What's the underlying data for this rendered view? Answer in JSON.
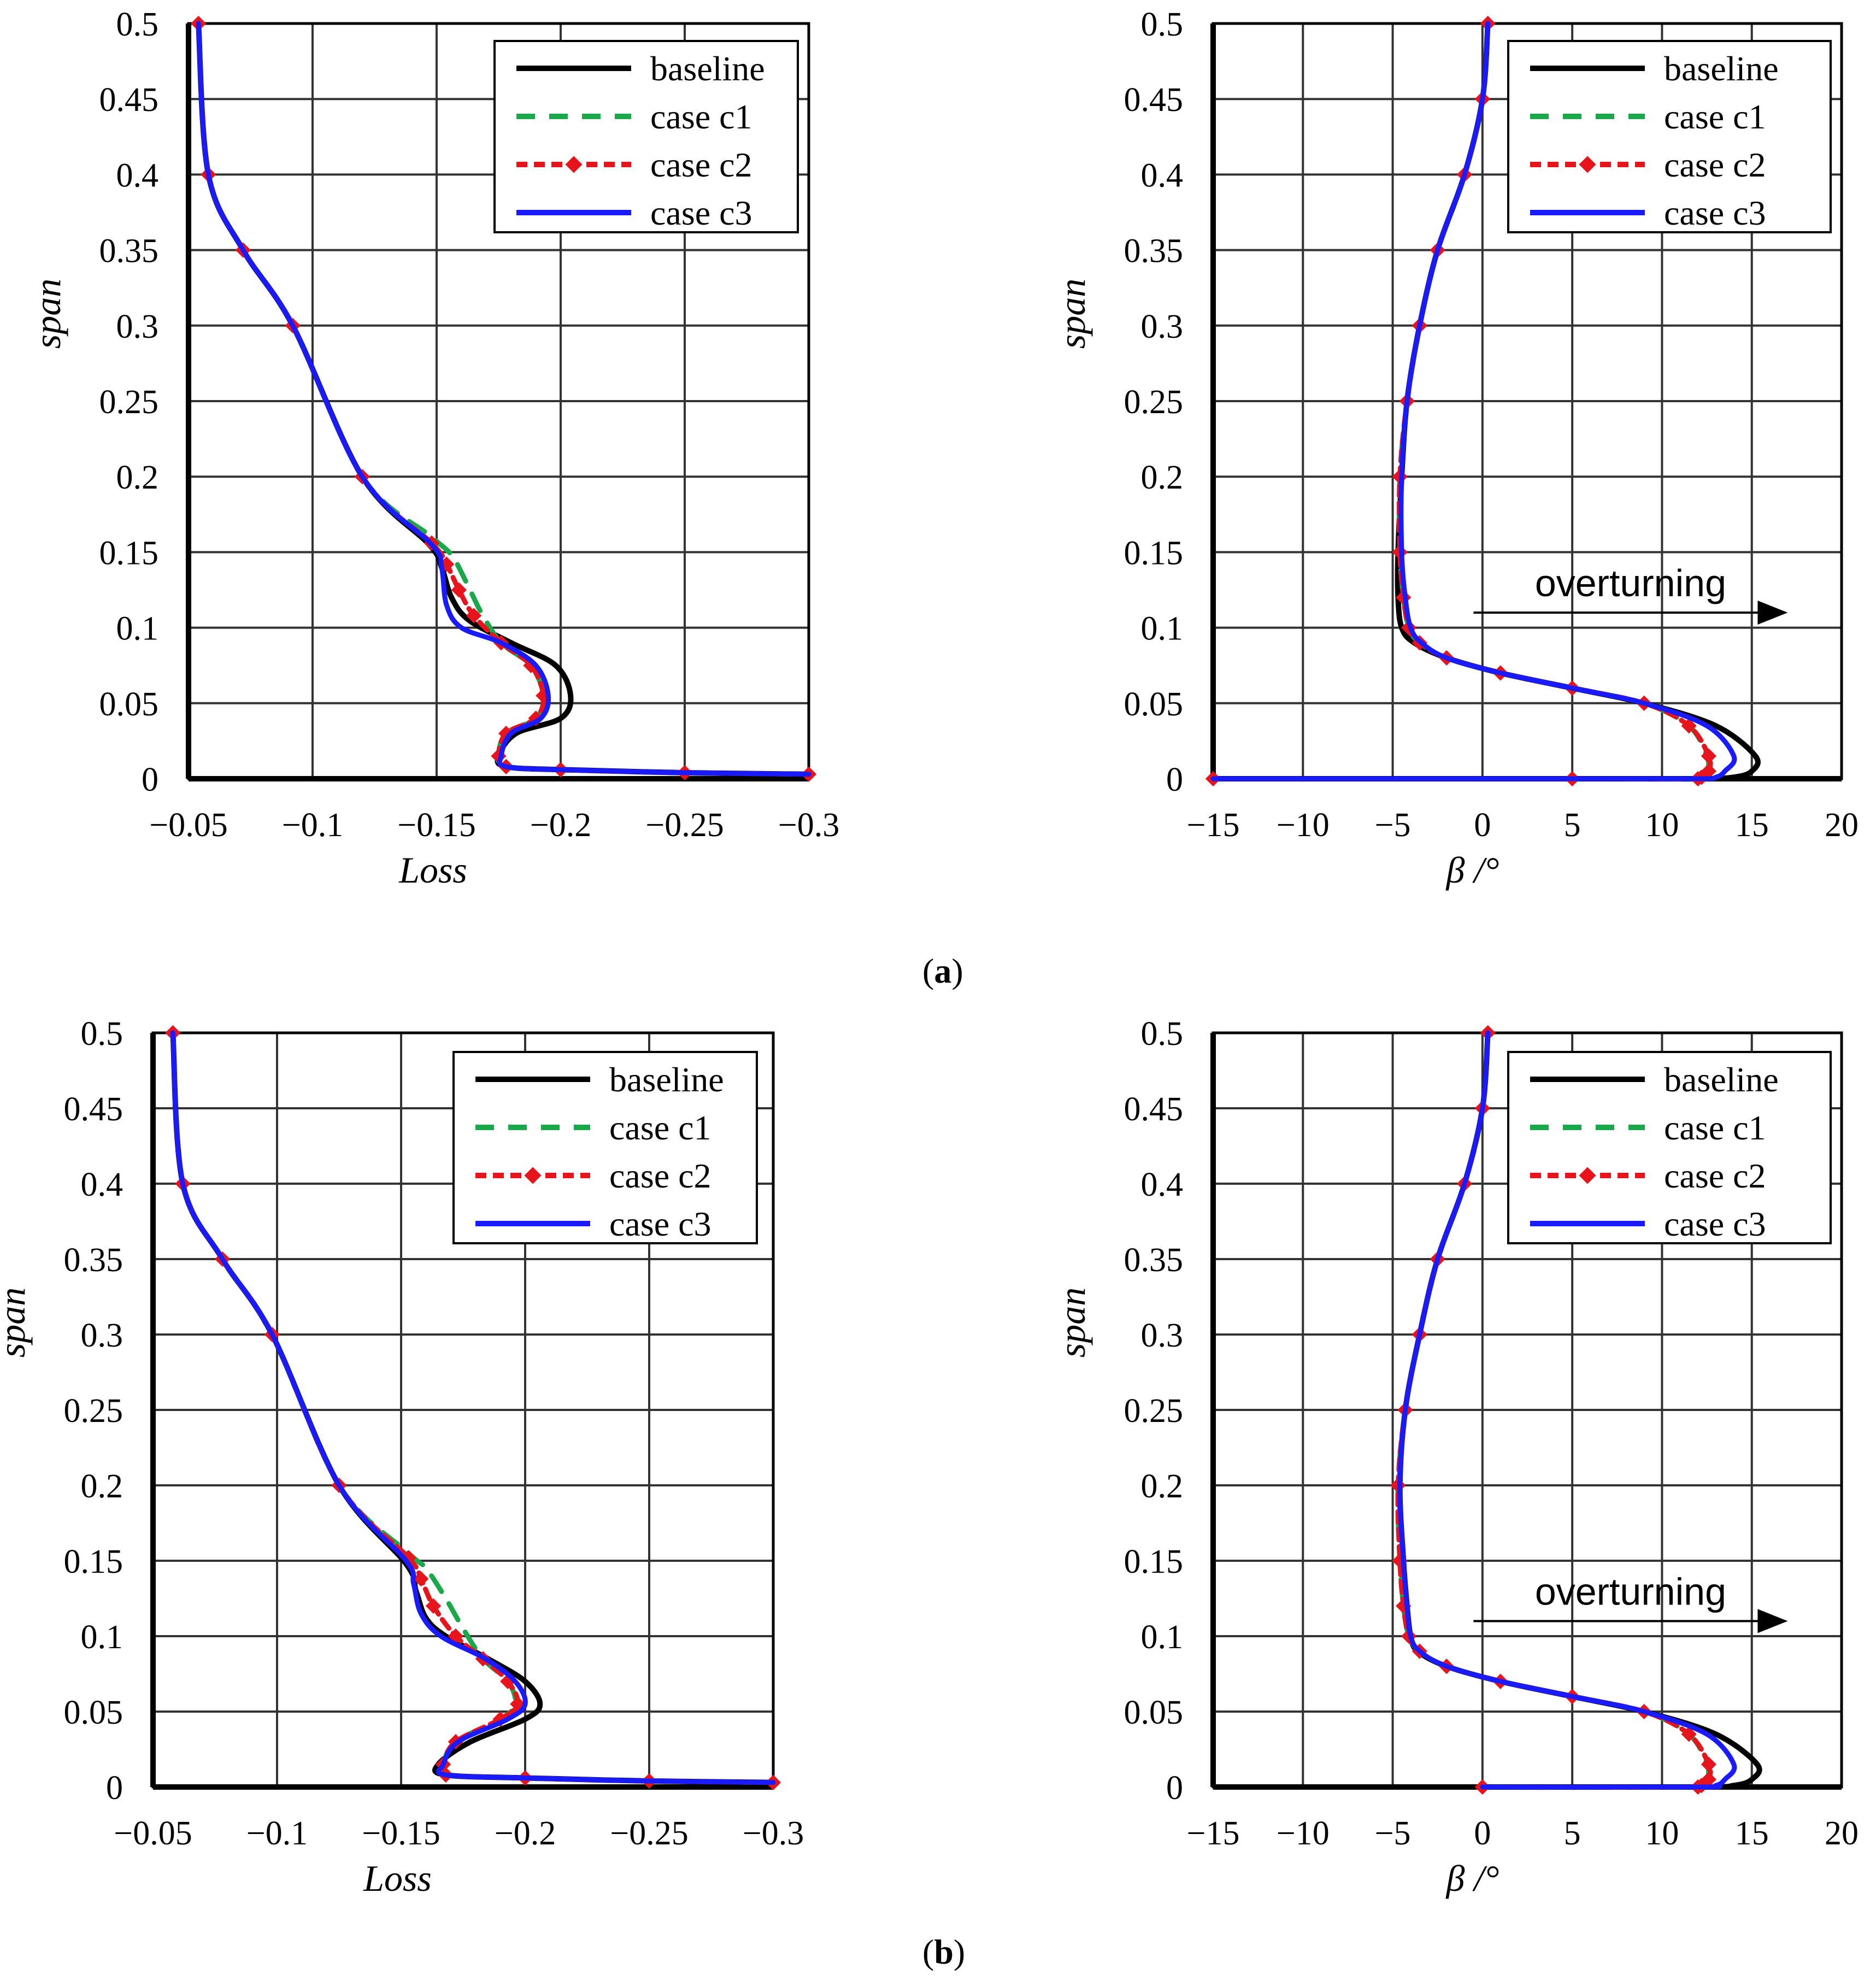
{
  "colors": {
    "baseline": "#000000",
    "case_c1": "#1aa84a",
    "case_c2": "#e8141c",
    "case_c3": "#1a1aff",
    "grid": "#333333"
  },
  "panel_labels": {
    "a": "a",
    "b": "b"
  },
  "chart_data": [
    {
      "id": "a-loss",
      "type": "line",
      "panel": "a",
      "xlabel": "Loss",
      "ylabel": "span",
      "xlim": [
        -0.05,
        -0.3
      ],
      "ylim": [
        0,
        0.5
      ],
      "xticks": [
        -0.05,
        -0.1,
        -0.15,
        -0.2,
        -0.25,
        -0.3
      ],
      "xtick_labels": [
        "−0.05",
        "−0.1",
        "−0.15",
        "−0.2",
        "−0.25",
        "−0.3"
      ],
      "yticks": [
        0,
        0.05,
        0.1,
        0.15,
        0.2,
        0.25,
        0.3,
        0.35,
        0.4,
        0.45,
        0.5
      ],
      "ytick_labels": [
        "0",
        "0.05",
        "0.1",
        "0.15",
        "0.2",
        "0.25",
        "0.3",
        "0.35",
        "0.4",
        "0.45",
        "0.5"
      ],
      "legend_position": "top-right",
      "series": [
        {
          "name": "baseline",
          "style": "solid",
          "x": [
            -0.054,
            -0.058,
            -0.072,
            -0.092,
            -0.12,
            -0.147,
            -0.152,
            -0.156,
            -0.163,
            -0.18,
            -0.198,
            -0.204,
            -0.2,
            -0.182,
            -0.175,
            -0.178,
            -0.2,
            -0.25,
            -0.3
          ],
          "y": [
            0.5,
            0.4,
            0.35,
            0.3,
            0.2,
            0.155,
            0.14,
            0.12,
            0.105,
            0.09,
            0.075,
            0.055,
            0.04,
            0.03,
            0.015,
            0.008,
            0.006,
            0.004,
            0.003
          ]
        },
        {
          "name": "case c1",
          "style": "dashed",
          "x": [
            -0.054,
            -0.058,
            -0.072,
            -0.092,
            -0.12,
            -0.148,
            -0.156,
            -0.162,
            -0.168,
            -0.176,
            -0.188,
            -0.193,
            -0.19,
            -0.178,
            -0.175,
            -0.178,
            -0.2,
            -0.25,
            -0.3
          ],
          "y": [
            0.5,
            0.4,
            0.35,
            0.3,
            0.2,
            0.16,
            0.148,
            0.13,
            0.11,
            0.09,
            0.075,
            0.055,
            0.04,
            0.03,
            0.015,
            0.008,
            0.006,
            0.004,
            0.003
          ]
        },
        {
          "name": "case c2",
          "style": "dashed-marker",
          "x": [
            -0.054,
            -0.058,
            -0.072,
            -0.092,
            -0.12,
            -0.148,
            -0.154,
            -0.159,
            -0.165,
            -0.176,
            -0.188,
            -0.193,
            -0.19,
            -0.178,
            -0.175,
            -0.178,
            -0.2,
            -0.25,
            -0.3
          ],
          "y": [
            0.5,
            0.4,
            0.35,
            0.3,
            0.2,
            0.156,
            0.142,
            0.125,
            0.108,
            0.09,
            0.075,
            0.055,
            0.04,
            0.03,
            0.015,
            0.008,
            0.006,
            0.004,
            0.003
          ]
        },
        {
          "name": "case c3",
          "style": "solid",
          "x": [
            -0.054,
            -0.058,
            -0.072,
            -0.092,
            -0.12,
            -0.148,
            -0.152,
            -0.154,
            -0.16,
            -0.176,
            -0.19,
            -0.195,
            -0.192,
            -0.18,
            -0.176,
            -0.178,
            -0.2,
            -0.25,
            -0.3
          ],
          "y": [
            0.5,
            0.4,
            0.35,
            0.3,
            0.2,
            0.155,
            0.14,
            0.115,
            0.1,
            0.09,
            0.075,
            0.055,
            0.04,
            0.03,
            0.015,
            0.008,
            0.006,
            0.004,
            0.003
          ]
        }
      ]
    },
    {
      "id": "a-beta",
      "type": "line",
      "panel": "a",
      "xlabel": "β /°",
      "ylabel": "span",
      "xlim": [
        -15,
        20
      ],
      "ylim": [
        0,
        0.5
      ],
      "xticks": [
        -15,
        -10,
        -5,
        0,
        5,
        10,
        15,
        20
      ],
      "xtick_labels": [
        "−15",
        "−10",
        "−5",
        "0",
        "5",
        "10",
        "15",
        "20"
      ],
      "yticks": [
        0,
        0.05,
        0.1,
        0.15,
        0.2,
        0.25,
        0.3,
        0.35,
        0.4,
        0.45,
        0.5
      ],
      "ytick_labels": [
        "0",
        "0.05",
        "0.1",
        "0.15",
        "0.2",
        "0.25",
        "0.3",
        "0.35",
        "0.4",
        "0.45",
        "0.5"
      ],
      "legend_position": "top-right",
      "annotation": {
        "text": "overturning",
        "x_start": -0.5,
        "x_end": 17,
        "y": 0.11
      },
      "series": [
        {
          "name": "baseline",
          "style": "solid",
          "x": [
            0.3,
            0,
            -1,
            -2.5,
            -3.5,
            -4.2,
            -4.5,
            -4.7,
            -4.7,
            -4.5,
            -3.8,
            -2,
            1,
            5,
            9,
            13,
            15.2,
            15,
            14,
            12,
            5,
            -15
          ],
          "y": [
            0.5,
            0.45,
            0.4,
            0.35,
            0.3,
            0.25,
            0.2,
            0.15,
            0.12,
            0.1,
            0.09,
            0.08,
            0.07,
            0.06,
            0.05,
            0.035,
            0.015,
            0.005,
            0.001,
            0,
            0,
            0
          ]
        },
        {
          "name": "case c1",
          "style": "dashed",
          "x": [
            0.3,
            0,
            -1,
            -2.5,
            -3.5,
            -4.2,
            -4.6,
            -4.6,
            -4.4,
            -4.1,
            -3.5,
            -2,
            1,
            5,
            9,
            11.5,
            12.5,
            12.5,
            12,
            12,
            5,
            -15
          ],
          "y": [
            0.5,
            0.45,
            0.4,
            0.35,
            0.3,
            0.25,
            0.2,
            0.15,
            0.12,
            0.1,
            0.09,
            0.08,
            0.07,
            0.06,
            0.05,
            0.035,
            0.015,
            0.005,
            0.001,
            0,
            0,
            0
          ]
        },
        {
          "name": "case c2",
          "style": "dashed-marker",
          "x": [
            0.3,
            0,
            -1,
            -2.5,
            -3.5,
            -4.2,
            -4.6,
            -4.6,
            -4.4,
            -4.1,
            -3.5,
            -2,
            1,
            5,
            9,
            11.5,
            12.6,
            12.6,
            12.2,
            12,
            5,
            -15
          ],
          "y": [
            0.5,
            0.45,
            0.4,
            0.35,
            0.3,
            0.25,
            0.2,
            0.15,
            0.12,
            0.1,
            0.09,
            0.08,
            0.07,
            0.06,
            0.05,
            0.035,
            0.015,
            0.005,
            0.001,
            0,
            0,
            0
          ]
        },
        {
          "name": "case c3",
          "style": "solid",
          "x": [
            0.3,
            0,
            -1,
            -2.5,
            -3.5,
            -4.2,
            -4.5,
            -4.5,
            -4.3,
            -4,
            -3.4,
            -2,
            1,
            5,
            9,
            12.5,
            14,
            13.5,
            13,
            12,
            5,
            -15
          ],
          "y": [
            0.5,
            0.45,
            0.4,
            0.35,
            0.3,
            0.25,
            0.2,
            0.15,
            0.12,
            0.1,
            0.09,
            0.08,
            0.07,
            0.06,
            0.05,
            0.035,
            0.015,
            0.005,
            0.001,
            0,
            0,
            0
          ]
        }
      ]
    },
    {
      "id": "b-loss",
      "type": "line",
      "panel": "b",
      "xlabel": "Loss",
      "ylabel": "span",
      "xlim": [
        -0.05,
        -0.3
      ],
      "ylim": [
        0,
        0.5
      ],
      "xticks": [
        -0.05,
        -0.1,
        -0.15,
        -0.2,
        -0.25,
        -0.3
      ],
      "xtick_labels": [
        "−0.05",
        "−0.1",
        "−0.15",
        "−0.2",
        "−0.25",
        "−0.3"
      ],
      "yticks": [
        0,
        0.05,
        0.1,
        0.15,
        0.2,
        0.25,
        0.3,
        0.35,
        0.4,
        0.45,
        0.5
      ],
      "ytick_labels": [
        "0",
        "0.05",
        "0.1",
        "0.15",
        "0.2",
        "0.25",
        "0.3",
        "0.35",
        "0.4",
        "0.45",
        "0.5"
      ],
      "legend_position": "top-right",
      "series": [
        {
          "name": "baseline",
          "style": "solid",
          "x": [
            -0.058,
            -0.062,
            -0.078,
            -0.098,
            -0.125,
            -0.152,
            -0.156,
            -0.16,
            -0.168,
            -0.185,
            -0.2,
            -0.206,
            -0.2,
            -0.178,
            -0.165,
            -0.168,
            -0.2,
            -0.25,
            -0.3
          ],
          "y": [
            0.5,
            0.4,
            0.35,
            0.3,
            0.2,
            0.148,
            0.13,
            0.112,
            0.1,
            0.085,
            0.07,
            0.055,
            0.045,
            0.03,
            0.015,
            0.008,
            0.006,
            0.004,
            0.003
          ]
        },
        {
          "name": "case c1",
          "style": "dashed",
          "x": [
            -0.058,
            -0.062,
            -0.078,
            -0.098,
            -0.125,
            -0.153,
            -0.16,
            -0.168,
            -0.175,
            -0.183,
            -0.193,
            -0.196,
            -0.19,
            -0.172,
            -0.167,
            -0.168,
            -0.2,
            -0.25,
            -0.3
          ],
          "y": [
            0.5,
            0.4,
            0.35,
            0.3,
            0.2,
            0.155,
            0.145,
            0.125,
            0.105,
            0.085,
            0.07,
            0.055,
            0.045,
            0.03,
            0.015,
            0.008,
            0.006,
            0.004,
            0.003
          ]
        },
        {
          "name": "case c2",
          "style": "dashed-marker",
          "x": [
            -0.058,
            -0.062,
            -0.078,
            -0.098,
            -0.125,
            -0.153,
            -0.158,
            -0.163,
            -0.172,
            -0.183,
            -0.193,
            -0.197,
            -0.19,
            -0.172,
            -0.167,
            -0.168,
            -0.2,
            -0.25,
            -0.3
          ],
          "y": [
            0.5,
            0.4,
            0.35,
            0.3,
            0.2,
            0.152,
            0.138,
            0.12,
            0.1,
            0.085,
            0.07,
            0.055,
            0.045,
            0.03,
            0.015,
            0.008,
            0.006,
            0.004,
            0.003
          ]
        },
        {
          "name": "case c3",
          "style": "solid",
          "x": [
            -0.058,
            -0.062,
            -0.078,
            -0.098,
            -0.125,
            -0.152,
            -0.155,
            -0.158,
            -0.166,
            -0.184,
            -0.196,
            -0.2,
            -0.193,
            -0.173,
            -0.167,
            -0.168,
            -0.2,
            -0.25,
            -0.3
          ],
          "y": [
            0.5,
            0.4,
            0.35,
            0.3,
            0.2,
            0.15,
            0.135,
            0.115,
            0.1,
            0.085,
            0.07,
            0.055,
            0.045,
            0.03,
            0.015,
            0.008,
            0.006,
            0.004,
            0.003
          ]
        }
      ]
    },
    {
      "id": "b-beta",
      "type": "line",
      "panel": "b",
      "xlabel": "β /°",
      "ylabel": "span",
      "xlim": [
        -15,
        20
      ],
      "ylim": [
        0,
        0.5
      ],
      "xticks": [
        -15,
        -10,
        -5,
        0,
        5,
        10,
        15,
        20
      ],
      "xtick_labels": [
        "−15",
        "−10",
        "−5",
        "0",
        "5",
        "10",
        "15",
        "20"
      ],
      "yticks": [
        0,
        0.05,
        0.1,
        0.15,
        0.2,
        0.25,
        0.3,
        0.35,
        0.4,
        0.45,
        0.5
      ],
      "ytick_labels": [
        "0",
        "0.05",
        "0.1",
        "0.15",
        "0.2",
        "0.25",
        "0.3",
        "0.35",
        "0.4",
        "0.45",
        "0.5"
      ],
      "legend_position": "top-right",
      "annotation": {
        "text": "overturning",
        "x_start": -0.5,
        "x_end": 17,
        "y": 0.11
      },
      "series": [
        {
          "name": "baseline",
          "style": "solid",
          "x": [
            0.3,
            0,
            -1,
            -2.5,
            -3.5,
            -4.3,
            -4.6,
            -4.4,
            -4.2,
            -4,
            -3.6,
            -2,
            1,
            5,
            9,
            13,
            15.3,
            15,
            14,
            12,
            0
          ],
          "y": [
            0.5,
            0.45,
            0.4,
            0.35,
            0.3,
            0.25,
            0.2,
            0.15,
            0.12,
            0.1,
            0.09,
            0.08,
            0.07,
            0.06,
            0.05,
            0.035,
            0.015,
            0.005,
            0.001,
            0,
            0
          ]
        },
        {
          "name": "case c1",
          "style": "dashed",
          "x": [
            0.3,
            0,
            -1,
            -2.5,
            -3.5,
            -4.3,
            -4.7,
            -4.6,
            -4.4,
            -4.1,
            -3.5,
            -2,
            1,
            5,
            9,
            11.5,
            12.5,
            12.5,
            12,
            12,
            0
          ],
          "y": [
            0.5,
            0.45,
            0.4,
            0.35,
            0.3,
            0.25,
            0.2,
            0.15,
            0.12,
            0.1,
            0.09,
            0.08,
            0.07,
            0.06,
            0.05,
            0.035,
            0.015,
            0.005,
            0.001,
            0,
            0
          ]
        },
        {
          "name": "case c2",
          "style": "dashed-marker",
          "x": [
            0.3,
            0,
            -1,
            -2.5,
            -3.5,
            -4.3,
            -4.7,
            -4.6,
            -4.4,
            -4.1,
            -3.5,
            -2,
            1,
            5,
            9,
            11.5,
            12.6,
            12.6,
            12.2,
            12,
            0
          ],
          "y": [
            0.5,
            0.45,
            0.4,
            0.35,
            0.3,
            0.25,
            0.2,
            0.15,
            0.12,
            0.1,
            0.09,
            0.08,
            0.07,
            0.06,
            0.05,
            0.035,
            0.015,
            0.005,
            0.001,
            0,
            0
          ]
        },
        {
          "name": "case c3",
          "style": "solid",
          "x": [
            0.3,
            0,
            -1,
            -2.5,
            -3.5,
            -4.3,
            -4.6,
            -4.4,
            -4.2,
            -4,
            -3.5,
            -2,
            1,
            5,
            9,
            12.5,
            14,
            13.5,
            13,
            12,
            0
          ],
          "y": [
            0.5,
            0.45,
            0.4,
            0.35,
            0.3,
            0.25,
            0.2,
            0.15,
            0.12,
            0.1,
            0.09,
            0.08,
            0.07,
            0.06,
            0.05,
            0.035,
            0.015,
            0.005,
            0.001,
            0,
            0
          ]
        }
      ]
    }
  ]
}
